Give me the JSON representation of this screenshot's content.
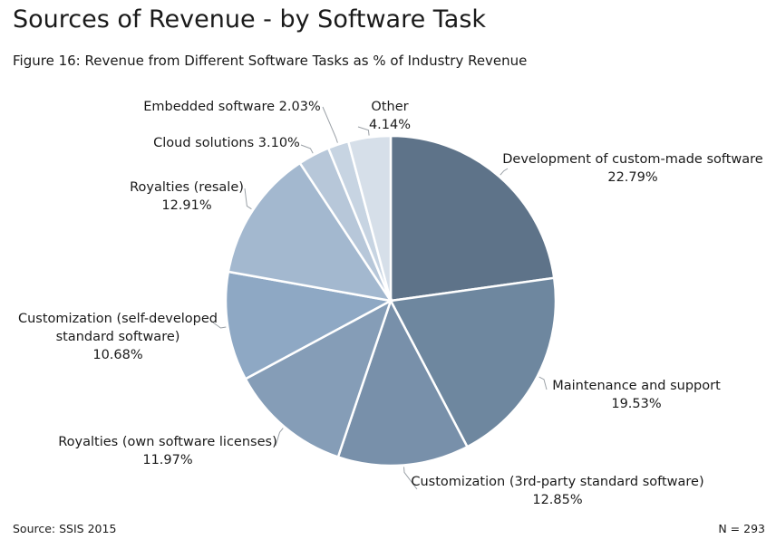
{
  "header": {
    "title": "Sources of Revenue - by Software Task",
    "subtitle": "Figure 16: Revenue from Different Software Tasks as % of Industry Revenue"
  },
  "footer": {
    "source": "Source: SSIS 2015",
    "n": "N = 293"
  },
  "chart_data": {
    "type": "pie",
    "title": "Sources of Revenue - by Software Task",
    "subtitle": "Figure 16: Revenue from Different Software Tasks as % of Industry Revenue",
    "unit": "%",
    "slices": [
      {
        "label": "Development of custom-made software",
        "value": 22.79,
        "value_label": "22.79%",
        "color": "#5e7389"
      },
      {
        "label": "Maintenance and support",
        "value": 19.53,
        "value_label": "19.53%",
        "color": "#6e879f"
      },
      {
        "label": "Customization (3rd-party standard software)",
        "value": 12.85,
        "value_label": "12.85%",
        "color": "#7890aa"
      },
      {
        "label": "Royalties (own software licenses)",
        "value": 11.97,
        "value_label": "11.97%",
        "color": "#859db7"
      },
      {
        "label": "Customization (self-developed standard software)",
        "value": 10.68,
        "value_label": "10.68%",
        "color": "#8ea8c4"
      },
      {
        "label": "Royalties (resale)",
        "value": 12.91,
        "value_label": "12.91%",
        "color": "#a3b8cf"
      },
      {
        "label": "Cloud solutions",
        "value": 3.1,
        "value_label": "3.10%",
        "color": "#b7c7d9"
      },
      {
        "label": "Embedded software",
        "value": 2.03,
        "value_label": "2.03%",
        "color": "#c7d4e2"
      },
      {
        "label": "Other",
        "value": 4.14,
        "value_label": "4.14%",
        "color": "#d6dfe9"
      }
    ]
  }
}
